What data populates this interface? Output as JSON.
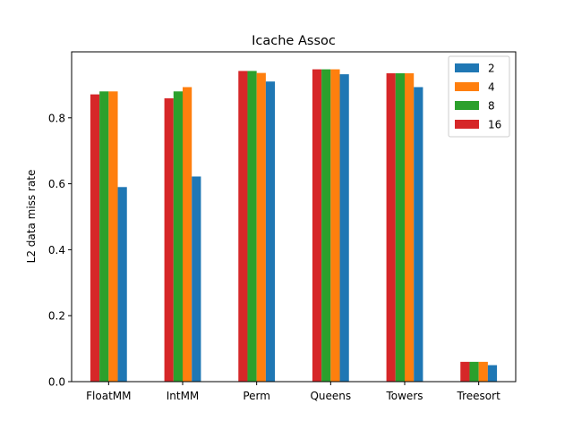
{
  "chart_data": {
    "type": "bar",
    "title": "Icache Assoc",
    "xlabel": "",
    "ylabel": "L2 data miss rate",
    "ylim": [
      0,
      1.0
    ],
    "yticks": [
      "0.0",
      "0.2",
      "0.4",
      "0.6",
      "0.8"
    ],
    "grid": false,
    "legend_position": "top-right",
    "categories": [
      "FloatMM",
      "IntMM",
      "Perm",
      "Queens",
      "Towers",
      "Treesort"
    ],
    "series": [
      {
        "name": "16",
        "color": "#d62728",
        "values": [
          0.871,
          0.859,
          0.942,
          0.947,
          0.935,
          0.06
        ]
      },
      {
        "name": "8",
        "color": "#2ca02c",
        "values": [
          0.88,
          0.88,
          0.942,
          0.947,
          0.935,
          0.06
        ]
      },
      {
        "name": "4",
        "color": "#ff7f0e",
        "values": [
          0.88,
          0.893,
          0.936,
          0.947,
          0.935,
          0.06
        ]
      },
      {
        "name": "2",
        "color": "#1f77b4",
        "values": [
          0.59,
          0.622,
          0.91,
          0.932,
          0.893,
          0.05
        ]
      }
    ],
    "legend_order": [
      "2",
      "4",
      "8",
      "16"
    ]
  }
}
